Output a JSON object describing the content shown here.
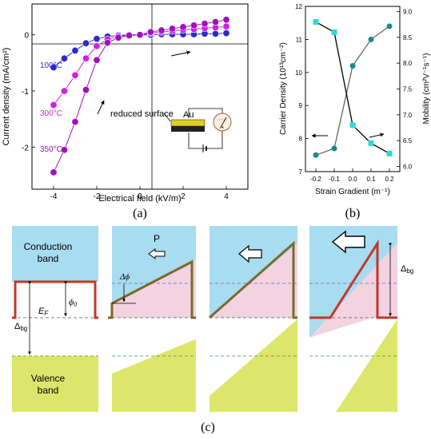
{
  "chart_data": [
    {
      "type": "line",
      "panel_label": "(a)",
      "xlabel": "Electrical field (kV/m)",
      "ylabel": "Current density (mA/cm²)",
      "xlim": [
        -5,
        5
      ],
      "ylim": [
        -2.75,
        0.55
      ],
      "xticks": [
        "-4",
        "-2",
        "0",
        "2",
        "4"
      ],
      "yticks": [
        "0",
        "-1",
        "-2"
      ],
      "x": [
        -4,
        -3.5,
        -3,
        -2.5,
        -2,
        -1.5,
        -1,
        -0.5,
        0,
        0.5,
        1,
        1.5,
        2,
        2.5,
        3,
        3.5,
        4
      ],
      "series": [
        {
          "name": "100°C",
          "color": "#2a2ad0",
          "values": [
            -0.58,
            -0.42,
            -0.28,
            -0.15,
            -0.07,
            -0.03,
            -0.01,
            0.0,
            0.0,
            0.0,
            0.01,
            0.01,
            0.01,
            0.01,
            0.02,
            0.02,
            0.03
          ]
        },
        {
          "name": "300°C",
          "color": "#d020e0",
          "values": [
            -1.25,
            -1.0,
            -0.72,
            -0.42,
            -0.2,
            -0.08,
            -0.03,
            -0.01,
            0.0,
            0.03,
            0.05,
            0.07,
            0.09,
            0.1,
            0.12,
            0.13,
            0.15
          ]
        },
        {
          "name": "350°C",
          "color": "#a010c0",
          "values": [
            -2.45,
            -2.05,
            -1.55,
            -0.98,
            -0.45,
            -0.14,
            -0.05,
            -0.01,
            0.0,
            0.05,
            0.08,
            0.11,
            0.14,
            0.17,
            0.2,
            0.23,
            0.27
          ]
        }
      ],
      "annotations": [
        "reduced surface",
        "Au",
        "A"
      ],
      "inset": {
        "electrode": "Au",
        "meter": "A"
      }
    },
    {
      "type": "line",
      "panel_label": "(b)",
      "xlabel": "Strain Gradient (m⁻¹)",
      "ylabel_left": "Carrier Density (10¹³cm⁻²)",
      "ylabel_right": "Mobility (cm²V⁻¹s⁻¹)",
      "xticks": [
        "-0.2",
        "-0.1",
        "0.0",
        "0.1",
        "0.2"
      ],
      "yticks_left": [
        "7",
        "8",
        "9",
        "10",
        "11",
        "12"
      ],
      "yticks_right": [
        "6.0",
        "6.5",
        "7.0",
        "7.5",
        "8.0",
        "8.5",
        "9.0"
      ],
      "ylim_left": [
        7,
        12
      ],
      "ylim_right": [
        5.9,
        9.1
      ],
      "x": [
        -0.2,
        -0.1,
        0.0,
        0.1,
        0.2
      ],
      "series": [
        {
          "axis": "left",
          "color": "#1a8a8a",
          "values": [
            7.5,
            7.7,
            10.2,
            11.0,
            11.4
          ]
        },
        {
          "axis": "right",
          "color": "#33d6d6",
          "values": [
            8.8,
            8.6,
            6.8,
            6.45,
            6.25
          ]
        }
      ]
    }
  ],
  "diagram": {
    "panel_label": "(c)",
    "labels": {
      "conduction": [
        "Conduction",
        "band"
      ],
      "valence": [
        "Valence",
        "band"
      ],
      "phi0": "ϕ",
      "phi0_sub": "0",
      "dphi": "Δϕ",
      "delta_bg": "Δ",
      "delta_bg_sub": "bg",
      "ef": "E",
      "ef_sub": "F",
      "p": "P"
    },
    "colors": {
      "conduction": "#a8dcf0",
      "valence": "#dde66a",
      "band": "#c0392b",
      "pink": "#f0c8d8"
    }
  }
}
